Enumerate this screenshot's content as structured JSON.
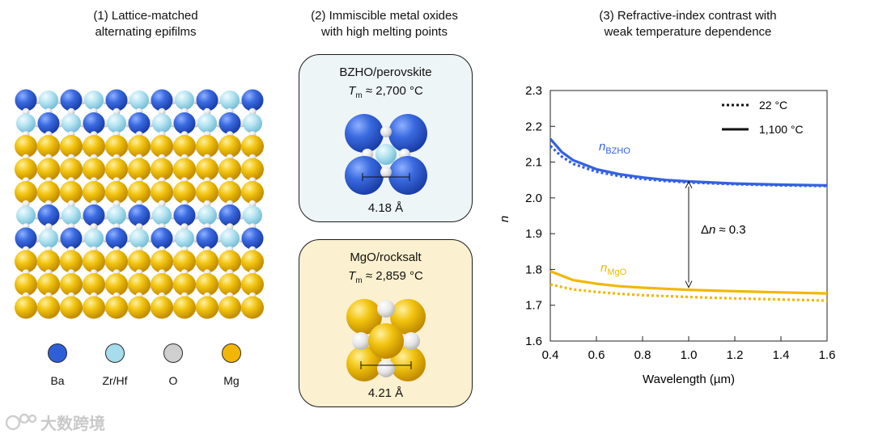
{
  "panel1": {
    "title_line1": "(1) Lattice-matched",
    "title_line2": "alternating epifilms",
    "layers": [
      "blue",
      "blue",
      "gold",
      "gold",
      "gold",
      "blue",
      "blue",
      "gold",
      "gold",
      "gold"
    ],
    "legend": [
      {
        "label": "Ba",
        "color": "#2f5fd6"
      },
      {
        "label": "Zr/Hf",
        "color": "#a6dcec"
      },
      {
        "label": "O",
        "color": "#cfcfcf"
      },
      {
        "label": "Mg",
        "color": "#f2b705"
      }
    ]
  },
  "panel2": {
    "title_line1": "(2) Immiscible metal oxides",
    "title_line2": "with high melting points",
    "bzho": {
      "name": "BZHO/perovskite",
      "tm_symbol": "T",
      "tm_sub": "m",
      "tm_value": "≈ 2,700 °C",
      "lattice": "4.18 Å",
      "bg": "#eef5f7"
    },
    "mgo": {
      "name": "MgO/rocksalt",
      "tm_symbol": "T",
      "tm_sub": "m",
      "tm_value": "≈ 2,859 °C",
      "lattice": "4.21 Å",
      "bg": "#fbf0cf"
    }
  },
  "panel3": {
    "title_line1": "(3) Refractive-index contrast with",
    "title_line2": "weak temperature dependence"
  },
  "chart_data": {
    "type": "line",
    "title": "(3) Refractive-index contrast with weak temperature dependence",
    "xlabel": "Wavelength (µm)",
    "ylabel": "n",
    "xlim": [
      0.4,
      1.6
    ],
    "ylim": [
      1.6,
      2.3
    ],
    "xticks": [
      0.4,
      0.6,
      0.8,
      1.0,
      1.2,
      1.4,
      1.6
    ],
    "yticks": [
      1.6,
      1.7,
      1.8,
      1.9,
      2.0,
      2.1,
      2.2,
      2.3
    ],
    "xtick_labels": [
      "0.4",
      "0.6",
      "0.8",
      "1.0",
      "1.2",
      "1.4",
      "1.6"
    ],
    "ytick_labels": [
      "1.6",
      "1.7",
      "1.8",
      "1.9",
      "2.0",
      "2.1",
      "2.2",
      "2.3"
    ],
    "legend": [
      {
        "label": "22 °C",
        "style": "dotted"
      },
      {
        "label": "1,100 °C",
        "style": "solid"
      }
    ],
    "series": [
      {
        "name": "BZHO 1,100 °C",
        "material": "BZHO",
        "style": "solid",
        "color": "#3461e0",
        "x": [
          0.4,
          0.45,
          0.5,
          0.6,
          0.7,
          0.8,
          0.9,
          1.0,
          1.2,
          1.4,
          1.6
        ],
        "y": [
          2.165,
          2.128,
          2.105,
          2.08,
          2.066,
          2.057,
          2.05,
          2.046,
          2.04,
          2.037,
          2.035
        ]
      },
      {
        "name": "BZHO 22 °C",
        "material": "BZHO",
        "style": "dotted",
        "color": "#3461e0",
        "x": [
          0.4,
          0.45,
          0.5,
          0.6,
          0.7,
          0.8,
          0.9,
          1.0,
          1.2,
          1.4,
          1.6
        ],
        "y": [
          2.145,
          2.115,
          2.095,
          2.073,
          2.061,
          2.053,
          2.047,
          2.043,
          2.038,
          2.035,
          2.033
        ]
      },
      {
        "name": "MgO 1,100 °C",
        "material": "MgO",
        "style": "solid",
        "color": "#f2b705",
        "x": [
          0.4,
          0.5,
          0.6,
          0.7,
          0.8,
          1.0,
          1.2,
          1.4,
          1.6
        ],
        "y": [
          1.795,
          1.77,
          1.76,
          1.753,
          1.749,
          1.743,
          1.739,
          1.736,
          1.733
        ]
      },
      {
        "name": "MgO 22 °C",
        "material": "MgO",
        "style": "dotted",
        "color": "#f2b705",
        "x": [
          0.4,
          0.5,
          0.6,
          0.7,
          0.8,
          1.0,
          1.2,
          1.4,
          1.6
        ],
        "y": [
          1.758,
          1.744,
          1.737,
          1.732,
          1.728,
          1.723,
          1.719,
          1.716,
          1.713
        ]
      }
    ],
    "annotations": {
      "n_bzho_base": "n",
      "n_bzho_sub": "BZHO",
      "n_mgo_base": "n",
      "n_mgo_sub": "MgO",
      "delta_n_symbol": "Δ",
      "delta_n_italic": "n",
      "delta_n_value": "≈ 0.3",
      "delta_arrow": {
        "x": 1.0,
        "y_from": 1.75,
        "y_to": 2.045
      }
    }
  },
  "watermark": "大数跨境"
}
